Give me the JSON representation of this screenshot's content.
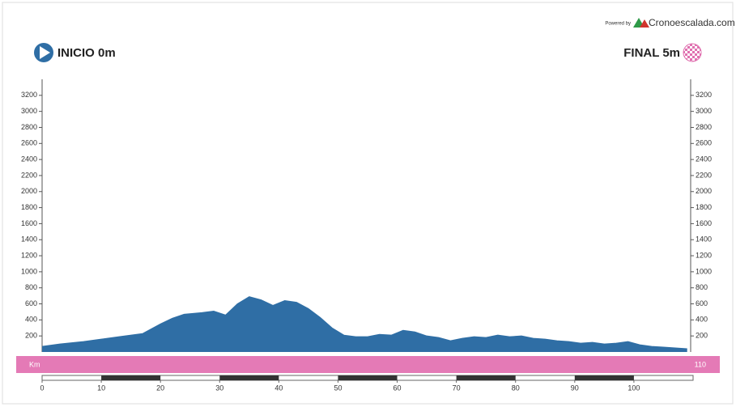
{
  "chart_data": {
    "type": "area",
    "start_label": "INICIO 0m",
    "end_label": "FINAL 5m",
    "powered_by": "Powered by",
    "brand": "Cronoescalada.com",
    "x_label": "Km",
    "x": [
      0,
      3,
      7,
      10,
      13,
      17,
      20,
      22,
      24,
      27,
      29,
      31,
      33,
      35,
      37,
      39,
      41,
      43,
      45,
      47,
      49,
      51,
      53,
      55,
      57,
      59,
      61,
      63,
      65,
      67,
      69,
      71,
      73,
      75,
      77,
      79,
      81,
      83,
      85,
      87,
      89,
      91,
      93,
      95,
      97,
      99,
      101,
      103,
      105,
      107,
      109
    ],
    "values": [
      70,
      100,
      130,
      160,
      190,
      230,
      350,
      420,
      470,
      490,
      510,
      460,
      600,
      690,
      650,
      580,
      640,
      620,
      540,
      430,
      300,
      210,
      190,
      190,
      220,
      210,
      270,
      250,
      200,
      180,
      140,
      170,
      190,
      180,
      210,
      190,
      200,
      170,
      160,
      140,
      130,
      110,
      120,
      100,
      110,
      130,
      90,
      70,
      60,
      50,
      40
    ],
    "color": "#2f6ea5",
    "xlim": [
      0,
      110
    ],
    "xticks": [
      0,
      10,
      20,
      30,
      40,
      50,
      60,
      70,
      80,
      90,
      100
    ],
    "ylim": [
      0,
      3400
    ],
    "yticks": [
      200,
      400,
      600,
      800,
      1000,
      1200,
      1400,
      1600,
      1800,
      2000,
      2200,
      2400,
      2600,
      2800,
      3000,
      3200
    ]
  }
}
